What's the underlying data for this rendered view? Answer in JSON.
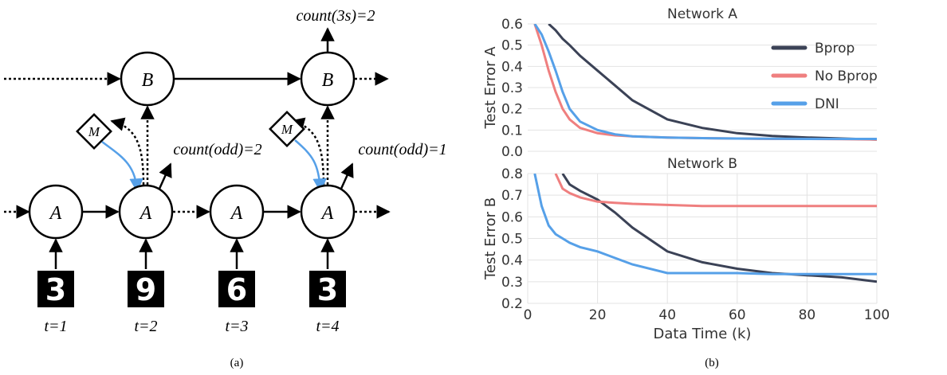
{
  "diagram": {
    "a_nodes": [
      "A",
      "A",
      "A",
      "A"
    ],
    "b_nodes": [
      "B",
      "B"
    ],
    "m_nodes": [
      "M",
      "M"
    ],
    "digits": [
      "3",
      "9",
      "6",
      "3"
    ],
    "times": [
      "t=1",
      "t=2",
      "t=3",
      "t=4"
    ],
    "outputs": [
      "count(odd)=2",
      "count(odd)=1",
      "count(3s)=2"
    ]
  },
  "captions": [
    "(a)",
    "(b)"
  ],
  "chart_data": [
    {
      "type": "line",
      "title": "Network A",
      "y_label": "Test Error A",
      "x": [
        2,
        4,
        6,
        8,
        10,
        12,
        15,
        20,
        25,
        30,
        40,
        50,
        60,
        70,
        80,
        90,
        100
      ],
      "xlim": [
        0,
        100
      ],
      "ylim": [
        0,
        0.6
      ],
      "yticks": [
        {
          "value": 0,
          "label": "0.0"
        },
        0.1,
        0.2,
        0.3,
        0.4,
        0.5,
        0.6
      ],
      "grid": true,
      "legend": "upper right",
      "series": [
        {
          "name": "Bprop",
          "color": "#3b4256",
          "values": [
            null,
            null,
            0.6,
            0.57,
            0.53,
            0.5,
            0.45,
            0.38,
            0.31,
            0.24,
            0.15,
            0.11,
            0.085,
            0.072,
            0.065,
            0.06,
            0.055
          ]
        },
        {
          "name": "No Bprop",
          "color": "#ef7f7f",
          "values": [
            0.6,
            0.5,
            0.38,
            0.28,
            0.2,
            0.15,
            0.11,
            0.085,
            0.075,
            0.07,
            0.065,
            0.062,
            0.06,
            0.058,
            0.058,
            0.057,
            0.055
          ]
        },
        {
          "name": "DNI",
          "color": "#56a0e8",
          "values": [
            0.6,
            0.55,
            0.47,
            0.38,
            0.28,
            0.2,
            0.14,
            0.1,
            0.08,
            0.07,
            0.065,
            0.062,
            0.06,
            0.059,
            0.058,
            0.058,
            0.058
          ]
        }
      ]
    },
    {
      "type": "line",
      "title": "Network B",
      "y_label": "Test Error B",
      "x_label": "Data Time (k)",
      "x": [
        2,
        4,
        6,
        8,
        10,
        12,
        15,
        20,
        25,
        30,
        40,
        50,
        60,
        70,
        80,
        90,
        100
      ],
      "xlim": [
        0,
        100
      ],
      "xticks": [
        0,
        20,
        40,
        60,
        80,
        100
      ],
      "ylim": [
        0.2,
        0.8
      ],
      "yticks": [
        0.2,
        0.3,
        0.4,
        0.5,
        0.6,
        0.7,
        0.8
      ],
      "grid": true,
      "series": [
        {
          "color": "#3b4256",
          "values": [
            null,
            null,
            null,
            null,
            0.8,
            0.75,
            0.72,
            0.68,
            0.62,
            0.55,
            0.44,
            0.39,
            0.36,
            0.34,
            0.33,
            0.32,
            0.3
          ]
        },
        {
          "color": "#ef7f7f",
          "values": [
            null,
            null,
            null,
            0.8,
            0.73,
            0.71,
            0.69,
            0.67,
            0.665,
            0.66,
            0.655,
            0.65,
            0.65,
            0.65,
            0.65,
            0.65,
            0.65
          ]
        },
        {
          "color": "#56a0e8",
          "values": [
            0.8,
            0.65,
            0.56,
            0.52,
            0.5,
            0.48,
            0.46,
            0.44,
            0.41,
            0.38,
            0.34,
            0.34,
            0.34,
            0.335,
            0.335,
            0.335,
            0.335
          ]
        }
      ]
    }
  ]
}
